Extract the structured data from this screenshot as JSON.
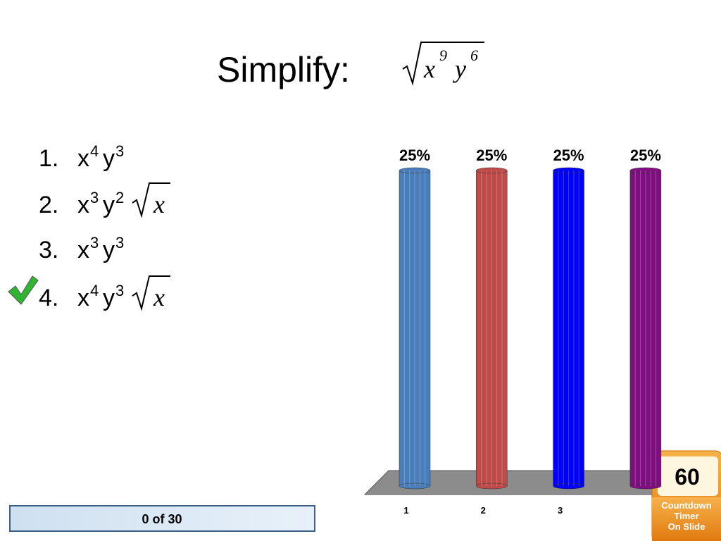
{
  "title": "Simplify:",
  "expression": {
    "radicand": [
      {
        "base": "x",
        "exp": "9"
      },
      {
        "base": "y",
        "exp": "6"
      }
    ]
  },
  "options": [
    {
      "number": "1.",
      "terms": [
        {
          "base": "x",
          "exp": "4"
        },
        {
          "base": "y",
          "exp": "3"
        }
      ]
    },
    {
      "number": "2.",
      "terms": [
        {
          "base": "x",
          "exp": "3"
        },
        {
          "base": "y",
          "exp": "2"
        }
      ],
      "radicand": "x"
    },
    {
      "number": "3.",
      "terms": [
        {
          "base": "x",
          "exp": "3"
        },
        {
          "base": "y",
          "exp": "3"
        }
      ]
    },
    {
      "number": "4.",
      "terms": [
        {
          "base": "x",
          "exp": "4"
        },
        {
          "base": "y",
          "exp": "3"
        }
      ],
      "radicand": "x"
    }
  ],
  "correct_option": 3,
  "chart_data": {
    "type": "bar",
    "categories": [
      "1",
      "2",
      "3",
      null
    ],
    "values": [
      25,
      25,
      25,
      25
    ],
    "value_labels": [
      "25%",
      "25%",
      "25%",
      "25%"
    ],
    "colors": [
      "#4a7ebb",
      "#be4b48",
      "#0000f5",
      "#7f0f80"
    ]
  },
  "counter": "0 of 30",
  "timer": {
    "value": "60",
    "caption": [
      "Countdown",
      "Timer",
      "On Slide"
    ]
  }
}
